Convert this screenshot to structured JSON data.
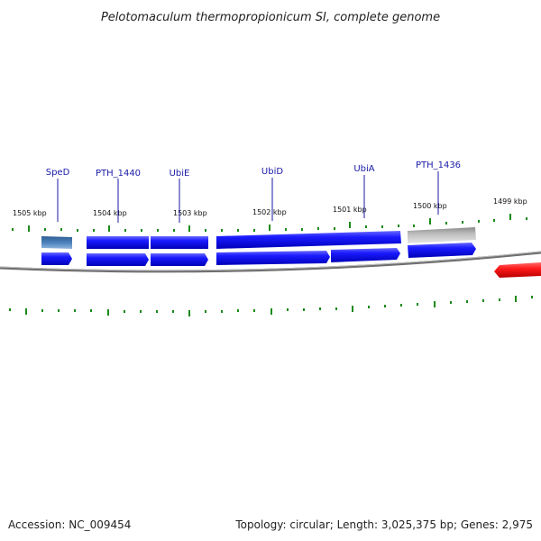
{
  "title": "Pelotomaculum thermopropionicum SI, complete genome",
  "accession": "Accession: NC_009454",
  "summary": "Topology: circular; Length: 3,025,375 bp; Genes: 2,975",
  "colors": {
    "gene_blue": "#1010e8",
    "gene_steel": "#4a7db5",
    "gene_grey": "#b8b8b8",
    "gene_red": "#ee1111",
    "tick_green": "#1a8a1a",
    "backbone": "#777777",
    "label_blue": "#1a1aa8"
  },
  "ticks": [
    {
      "label": "1505 kbp"
    },
    {
      "label": "1504 kbp"
    },
    {
      "label": "1503 kbp"
    },
    {
      "label": "1502 kbp"
    },
    {
      "label": "1501 kbp"
    },
    {
      "label": "1500 kbp"
    },
    {
      "label": "1499 kbp"
    }
  ],
  "gene_labels": [
    {
      "label": "SpeD"
    },
    {
      "label": "PTH_1440"
    },
    {
      "label": "UbiE"
    },
    {
      "label": "UbiD"
    },
    {
      "label": "UbiA"
    },
    {
      "label": "PTH_1436"
    }
  ]
}
